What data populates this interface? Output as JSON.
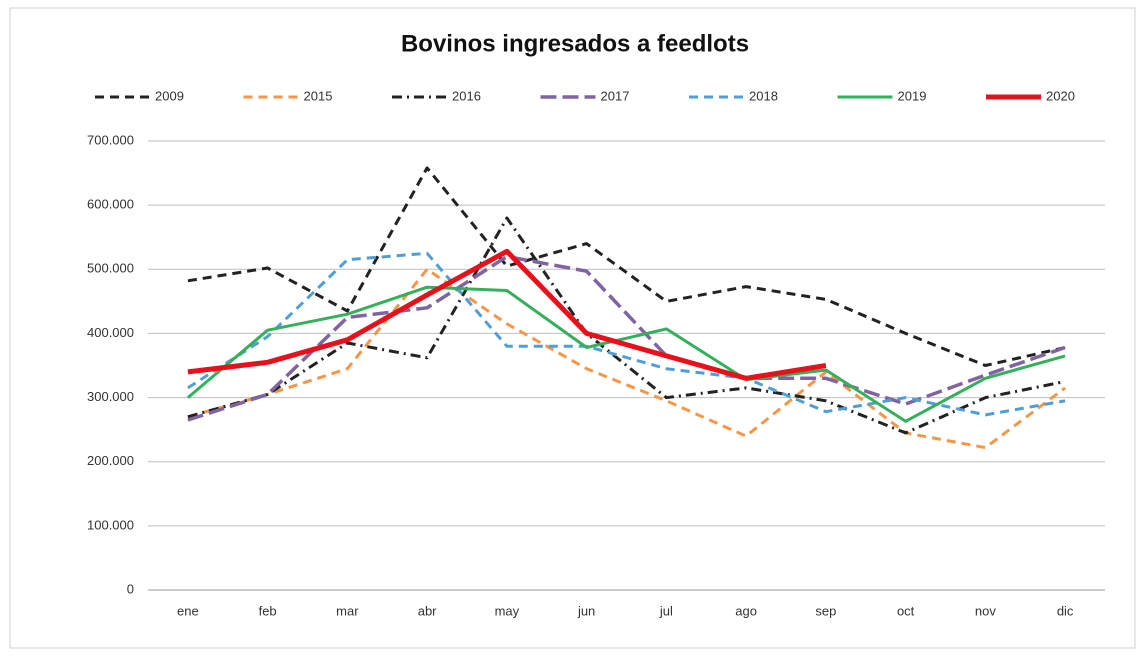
{
  "chart_data": {
    "type": "line",
    "title": "Bovinos ingresados a feedlots",
    "categories": [
      "ene",
      "feb",
      "mar",
      "abr",
      "may",
      "jun",
      "jul",
      "ago",
      "sep",
      "oct",
      "nov",
      "dic"
    ],
    "ylim": [
      0,
      700000
    ],
    "yticks": [
      0,
      {
        "value": 100000,
        "label": "100.000"
      },
      {
        "value": 200000,
        "label": "200.000"
      },
      {
        "value": 300000,
        "label": "300.000"
      },
      {
        "value": 400000,
        "label": "400.000"
      },
      {
        "value": 500000,
        "label": "500.000"
      },
      {
        "value": 600000,
        "label": "600.000"
      },
      {
        "value": 700000,
        "label": "700.000"
      }
    ],
    "grid": true,
    "legend": "top",
    "series": [
      {
        "name": "2009",
        "color": "#222222",
        "style": "dash",
        "values": [
          482000,
          502000,
          435000,
          658000,
          505000,
          540000,
          450000,
          473000,
          453000,
          400000,
          350000,
          378000
        ]
      },
      {
        "name": "2015",
        "color": "#f79646",
        "style": "dash",
        "values": [
          270000,
          305000,
          345000,
          500000,
          415000,
          345000,
          295000,
          240000,
          340000,
          245000,
          222000,
          315000
        ]
      },
      {
        "name": "2016",
        "color": "#222222",
        "style": "dashdot",
        "values": [
          270000,
          305000,
          385000,
          362000,
          580000,
          400000,
          300000,
          315000,
          295000,
          245000,
          300000,
          325000
        ]
      },
      {
        "name": "2017",
        "color": "#8064a2",
        "style": "longdash",
        "values": [
          265000,
          305000,
          425000,
          440000,
          520000,
          497000,
          365000,
          330000,
          330000,
          290000,
          335000,
          378000
        ]
      },
      {
        "name": "2018",
        "color": "#4f9fd6",
        "style": "dash",
        "values": [
          315000,
          395000,
          515000,
          525000,
          380000,
          380000,
          345000,
          330000,
          278000,
          300000,
          273000,
          295000
        ]
      },
      {
        "name": "2019",
        "color": "#33b05a",
        "style": "solid",
        "values": [
          300000,
          405000,
          430000,
          472000,
          467000,
          378000,
          407000,
          328000,
          343000,
          263000,
          330000,
          365000
        ]
      },
      {
        "name": "2020",
        "color": "#e8101a",
        "style": "bold",
        "values": [
          340000,
          355000,
          390000,
          460000,
          528000,
          400000,
          365000,
          330000,
          350000,
          null,
          null,
          null
        ]
      }
    ]
  }
}
